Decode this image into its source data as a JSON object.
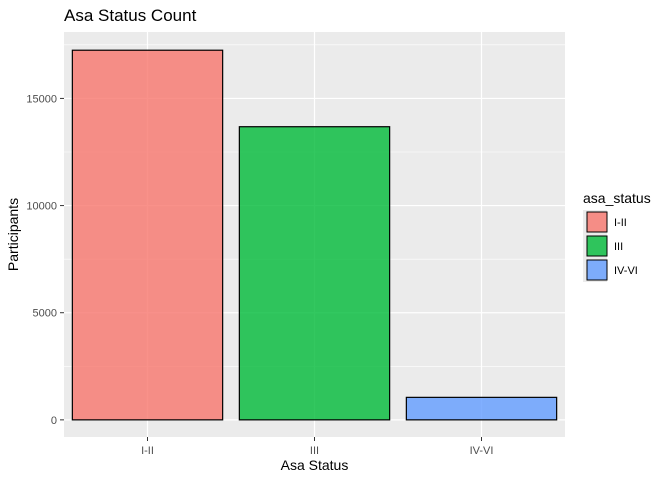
{
  "chart_data": {
    "type": "bar",
    "title": "Asa Status Count",
    "xlabel": "Asa Status",
    "ylabel": "Participants",
    "categories": [
      "I-II",
      "III",
      "IV-VI"
    ],
    "values": [
      17250,
      13680,
      1050
    ],
    "y_ticks": [
      0,
      5000,
      10000,
      15000
    ],
    "ylim": [
      -800,
      18100
    ],
    "colors": [
      "#F8766D",
      "#00BA38",
      "#619CFF"
    ],
    "bar_opacity": 0.8,
    "bar_outline": "#000000",
    "panel_background": "#EBEBEB",
    "grid": true,
    "legend": {
      "title": "asa_status",
      "placement": "right",
      "entries": [
        "I-II",
        "III",
        "IV-VI"
      ]
    }
  }
}
